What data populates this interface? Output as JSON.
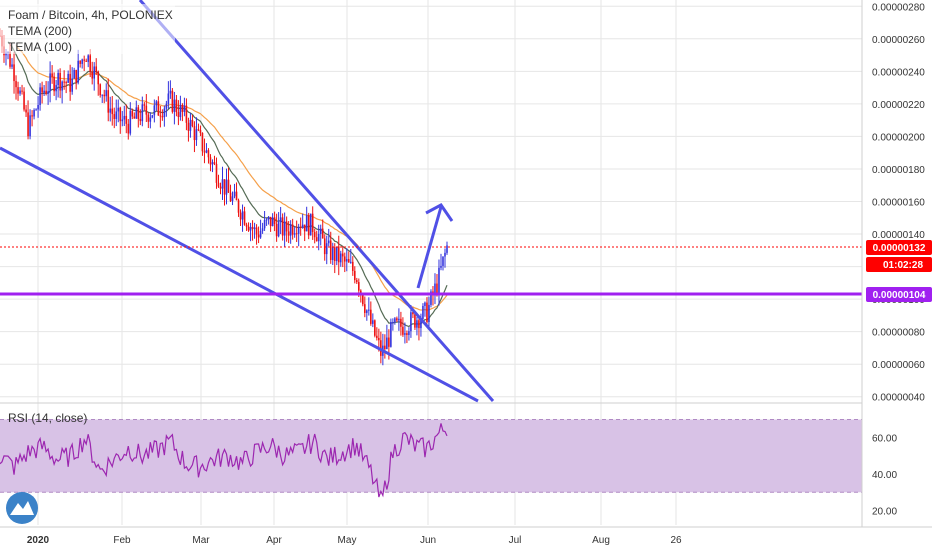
{
  "header": {
    "symbol_title": "Foam / Bitcoin, 4h, POLONIEX",
    "indicators": [
      "TEMA (200)",
      "TEMA (100)"
    ]
  },
  "price_axis": {
    "ticks": [
      "0.00000280",
      "0.00000260",
      "0.00000240",
      "0.00000220",
      "0.00000200",
      "0.00000180",
      "0.00000160",
      "0.00000140",
      "0.00000120",
      "0.00000100",
      "0.00000080",
      "0.00000060",
      "0.00000040"
    ],
    "tick_values": [
      280,
      260,
      240,
      220,
      200,
      180,
      160,
      140,
      120,
      100,
      80,
      60,
      40
    ],
    "current_price_label": "0.00000132",
    "countdown_label": "01:02:28",
    "horizontal_level_label": "0.00000104"
  },
  "rsi_panel": {
    "title": "RSI (14, close)",
    "ticks": [
      "60.00",
      "40.00",
      "20.00"
    ],
    "tick_values": [
      60,
      40,
      20
    ],
    "band_upper": 70,
    "band_lower": 30
  },
  "time_axis": {
    "labels": [
      "2020",
      "Feb",
      "Mar",
      "Apr",
      "May",
      "Jun",
      "Jul",
      "Aug",
      "26"
    ]
  },
  "colors": {
    "grid": "#e6e6e6",
    "up_candle": "#3333dd",
    "down_candle": "#ee1111",
    "tema200": "#f5a04a",
    "tema100": "#556b55",
    "trendline": "#5050e6",
    "level_line": "#a020f0",
    "price_tag": "#ff0000",
    "rsi_line": "#9c27b0",
    "rsi_band": "#d8c2e6"
  },
  "chart_data": {
    "type": "line",
    "title": "Foam / Bitcoin, 4h, POLONIEX",
    "series": [
      {
        "name": "Foam / Bitcoin",
        "x": [
          "2020-01-01",
          "2020-01-06",
          "2020-01-11",
          "2020-01-16",
          "2020-01-21",
          "2020-01-26",
          "2020-01-31",
          "2020-02-05",
          "2020-02-10",
          "2020-02-15",
          "2020-02-20",
          "2020-02-25",
          "2020-03-01",
          "2020-03-06",
          "2020-03-11",
          "2020-03-16",
          "2020-03-21",
          "2020-03-26",
          "2020-03-31",
          "2020-04-05",
          "2020-04-10",
          "2020-04-15",
          "2020-04-20",
          "2020-04-25",
          "2020-04-30",
          "2020-05-05",
          "2020-05-10",
          "2020-05-14",
          "2020-05-18",
          "2020-05-22",
          "2020-05-26",
          "2020-05-30",
          "2020-06-03",
          "2020-06-06"
        ],
        "values": [
          262,
          240,
          205,
          228,
          236,
          232,
          252,
          232,
          212,
          208,
          214,
          216,
          222,
          212,
          198,
          182,
          165,
          154,
          140,
          148,
          142,
          148,
          145,
          130,
          124,
          116,
          86,
          66,
          82,
          84,
          88,
          92,
          112,
          132
        ]
      },
      {
        "name": "RSI (14, close)",
        "x": [
          "2020-01-01",
          "2020-01-06",
          "2020-01-11",
          "2020-01-16",
          "2020-01-21",
          "2020-01-26",
          "2020-01-31",
          "2020-02-05",
          "2020-02-10",
          "2020-02-15",
          "2020-02-20",
          "2020-02-25",
          "2020-03-01",
          "2020-03-06",
          "2020-03-11",
          "2020-03-16",
          "2020-03-21",
          "2020-03-26",
          "2020-03-31",
          "2020-04-05",
          "2020-04-10",
          "2020-04-15",
          "2020-04-20",
          "2020-04-25",
          "2020-04-30",
          "2020-05-05",
          "2020-05-10",
          "2020-05-14",
          "2020-05-18",
          "2020-05-22",
          "2020-05-26",
          "2020-05-30",
          "2020-06-03",
          "2020-06-06"
        ],
        "values": [
          50,
          44,
          52,
          55,
          48,
          50,
          60,
          42,
          48,
          54,
          50,
          53,
          58,
          46,
          44,
          48,
          50,
          46,
          52,
          56,
          50,
          52,
          58,
          48,
          52,
          56,
          42,
          24,
          52,
          60,
          55,
          54,
          62,
          66
        ]
      }
    ],
    "ylim": [
      38,
      282
    ],
    "rsi_ylim": [
      12,
      78
    ],
    "log_scale": false,
    "grid": true
  }
}
